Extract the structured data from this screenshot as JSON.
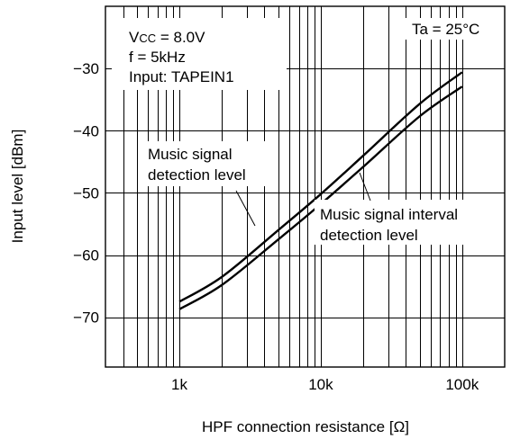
{
  "chart_data": {
    "type": "line",
    "xscale": "log",
    "xlim": [
      300,
      200000
    ],
    "ylim": [
      -78,
      -20
    ],
    "grid": true,
    "xticks": [
      1000,
      10000,
      100000
    ],
    "xtick_labels": [
      "1k",
      "10k",
      "100k"
    ],
    "yticks": [
      -30,
      -40,
      -50,
      -60,
      -70
    ],
    "ytick_labels": [
      "−30",
      "−40",
      "−50",
      "−60",
      "−70"
    ],
    "xlabel": "HPF connection resistance [Ω]",
    "ylabel": "Input level [dBm]",
    "series": [
      {
        "name": "Music signal detection level",
        "x": [
          1000,
          2000,
          5000,
          10000,
          20000,
          50000,
          100000
        ],
        "y": [
          -67.5,
          -63.5,
          -56.0,
          -50.2,
          -44.0,
          -35.7,
          -30.6
        ]
      },
      {
        "name": "Music signal interval detection level",
        "x": [
          1000,
          2000,
          5000,
          10000,
          20000,
          50000,
          100000
        ],
        "y": [
          -68.7,
          -64.8,
          -57.5,
          -51.8,
          -45.8,
          -37.7,
          -32.9
        ]
      }
    ],
    "annotations": {
      "conditions": {
        "vcc_main": "V",
        "vcc_sub": "CC",
        "vcc_value": " = 8.0V",
        "freq": "f = 5kHz",
        "input": "Input: TAPEIN1"
      },
      "temperature": "Ta = 25°C",
      "series_labels": {
        "detection": [
          "Music signal",
          "detection level"
        ],
        "interval": [
          "Music signal interval",
          "detection level"
        ]
      }
    }
  }
}
